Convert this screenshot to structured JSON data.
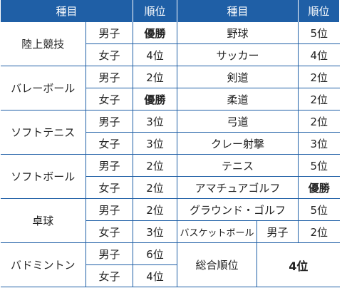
{
  "header": {
    "event_left": "種目",
    "rank_left": "順位",
    "event_right": "種目",
    "rank_right": "順位"
  },
  "left": [
    {
      "sport": "陸上競技",
      "rows": [
        {
          "gender": "男子",
          "rank": "優勝"
        },
        {
          "gender": "女子",
          "rank": "4位"
        }
      ]
    },
    {
      "sport": "バレーボール",
      "rows": [
        {
          "gender": "男子",
          "rank": "2位"
        },
        {
          "gender": "女子",
          "rank": "優勝"
        }
      ]
    },
    {
      "sport": "ソフトテニス",
      "rows": [
        {
          "gender": "男子",
          "rank": "3位"
        },
        {
          "gender": "女子",
          "rank": "3位"
        }
      ]
    },
    {
      "sport": "ソフトボール",
      "rows": [
        {
          "gender": "男子",
          "rank": "2位"
        },
        {
          "gender": "女子",
          "rank": "2位"
        }
      ]
    },
    {
      "sport": "卓球",
      "rows": [
        {
          "gender": "男子",
          "rank": "2位"
        },
        {
          "gender": "女子",
          "rank": "3位"
        }
      ]
    },
    {
      "sport": "バドミントン",
      "rows": [
        {
          "gender": "男子",
          "rank": "6位"
        },
        {
          "gender": "女子",
          "rank": "4位"
        }
      ]
    }
  ],
  "right": [
    {
      "sport": "野球",
      "rank": "5位"
    },
    {
      "sport": "サッカー",
      "rank": "4位"
    },
    {
      "sport": "剣道",
      "rank": "2位"
    },
    {
      "sport": "柔道",
      "rank": "2位"
    },
    {
      "sport": "弓道",
      "rank": "2位"
    },
    {
      "sport": "クレー射撃",
      "rank": "3位"
    },
    {
      "sport": "テニス",
      "rank": "5位"
    },
    {
      "sport": "アマチュアゴルフ",
      "rank": "優勝"
    },
    {
      "sport": "グラウンド・ゴルフ",
      "rank": "5位"
    },
    {
      "sport": "バスケットボール",
      "gender": "男子",
      "rank": "2位"
    }
  ],
  "total": {
    "label": "総合順位",
    "value": "4位"
  }
}
